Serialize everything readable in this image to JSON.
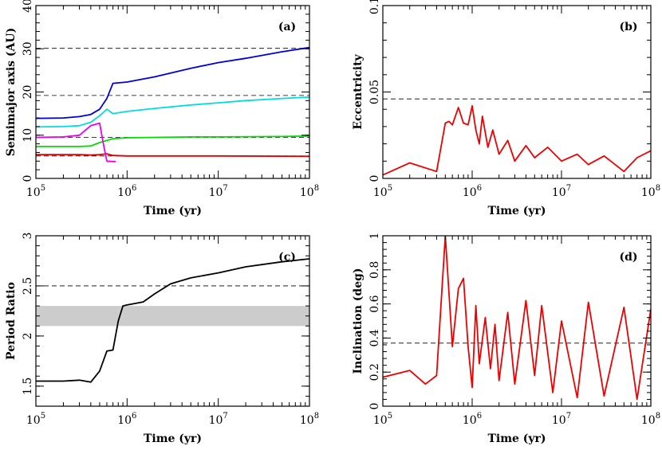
{
  "chart_data": [
    {
      "panel": "(a)",
      "type": "line",
      "xlabel": "Time (yr)",
      "ylabel": "Semimajor axis (AU)",
      "x_scale": "log",
      "xlim": [
        100000,
        100000000
      ],
      "ylim": [
        0,
        40
      ],
      "x_ticks": [
        100000,
        1000000,
        10000000,
        100000000
      ],
      "x_tick_labels": [
        [
          "10",
          "5"
        ],
        [
          "10",
          "6"
        ],
        [
          "10",
          "7"
        ],
        [
          "10",
          "8"
        ]
      ],
      "y_ticks": [
        0,
        10,
        20,
        30,
        40
      ],
      "y_tick_labels": [
        "0",
        "10",
        "20",
        "30",
        "40"
      ],
      "reference_lines_y": [
        30.1,
        19.2,
        9.5,
        5.2
      ],
      "series": [
        {
          "color": "#0000dd",
          "x": [
            100000,
            200000,
            300000,
            400000,
            500000,
            600000,
            700000,
            1000000,
            2000000,
            5000000,
            10000000,
            20000000,
            50000000,
            100000000
          ],
          "y": [
            13.9,
            14.0,
            14.3,
            14.8,
            16.0,
            18.5,
            22.0,
            22.3,
            23.5,
            25.5,
            26.8,
            27.8,
            29.3,
            30.3
          ]
        },
        {
          "color": "#00dddd",
          "x": [
            100000,
            200000,
            300000,
            400000,
            500000,
            600000,
            700000,
            1000000,
            2000000,
            5000000,
            10000000,
            20000000,
            50000000,
            100000000
          ],
          "y": [
            11.9,
            12.0,
            12.2,
            13.0,
            14.5,
            16.0,
            15.0,
            15.5,
            16.2,
            17.0,
            17.5,
            18.0,
            18.5,
            18.8
          ]
        },
        {
          "color": "#00dd00",
          "x": [
            100000,
            200000,
            300000,
            400000,
            500000,
            700000,
            1000000,
            2000000,
            5000000,
            10000000,
            50000000,
            100000000
          ],
          "y": [
            7.4,
            7.4,
            7.4,
            7.5,
            8.3,
            9.2,
            9.4,
            9.5,
            9.6,
            9.6,
            9.7,
            9.8
          ]
        },
        {
          "color": "#dd0000",
          "x": [
            100000,
            200000,
            300000,
            400000,
            500000,
            600000,
            700000,
            1000000,
            10000000,
            100000000
          ],
          "y": [
            5.5,
            5.5,
            5.5,
            5.4,
            5.5,
            5.7,
            5.3,
            5.2,
            5.2,
            5.1
          ]
        },
        {
          "color": "#ee00ee",
          "x": [
            100000,
            200000,
            300000,
            400000,
            500000,
            550000,
            600000,
            700000,
            750000
          ],
          "y": [
            9.5,
            9.6,
            10.0,
            12.2,
            12.8,
            8.0,
            4.0,
            3.9,
            3.9
          ]
        }
      ]
    },
    {
      "panel": "(b)",
      "type": "line",
      "xlabel": "Time (yr)",
      "ylabel": "Eccentricity",
      "x_scale": "log",
      "xlim": [
        100000,
        100000000
      ],
      "ylim": [
        0,
        0.1
      ],
      "x_ticks": [
        100000,
        1000000,
        10000000,
        100000000
      ],
      "x_tick_labels": [
        [
          "10",
          "5"
        ],
        [
          "10",
          "6"
        ],
        [
          "10",
          "7"
        ],
        [
          "10",
          "8"
        ]
      ],
      "y_ticks": [
        0,
        0.05,
        0.1
      ],
      "y_tick_labels": [
        "0",
        "0.05",
        "0.1"
      ],
      "reference_lines_y": [
        0.046
      ],
      "series": [
        {
          "color": "#ee0000",
          "x": [
            100000,
            200000,
            400000,
            500000,
            550000,
            600000,
            700000,
            800000,
            900000,
            1000000,
            1100000,
            1200000,
            1300000,
            1500000,
            1700000,
            2000000,
            2500000,
            3000000,
            4000000,
            5000000,
            7000000,
            10000000,
            15000000,
            20000000,
            30000000,
            50000000,
            70000000,
            100000000
          ],
          "y": [
            0.002,
            0.009,
            0.004,
            0.032,
            0.033,
            0.031,
            0.041,
            0.032,
            0.031,
            0.042,
            0.028,
            0.02,
            0.036,
            0.018,
            0.028,
            0.014,
            0.022,
            0.01,
            0.019,
            0.012,
            0.018,
            0.01,
            0.014,
            0.008,
            0.013,
            0.004,
            0.012,
            0.016
          ]
        }
      ]
    },
    {
      "panel": "(c)",
      "type": "line",
      "xlabel": "Time (yr)",
      "ylabel": "Period Ratio",
      "x_scale": "log",
      "xlim": [
        100000,
        100000000
      ],
      "ylim": [
        1.3,
        3
      ],
      "x_ticks": [
        100000,
        1000000,
        10000000,
        100000000
      ],
      "x_tick_labels": [
        [
          "10",
          "5"
        ],
        [
          "10",
          "6"
        ],
        [
          "10",
          "7"
        ],
        [
          "10",
          "8"
        ]
      ],
      "y_ticks": [
        1.5,
        2,
        2.5,
        3
      ],
      "y_tick_labels": [
        "1.5",
        "2",
        "2.5",
        "3"
      ],
      "reference_lines_y": [
        2.5
      ],
      "shaded_band_y": [
        2.1,
        2.3
      ],
      "series": [
        {
          "color": "#000000",
          "x": [
            100000,
            200000,
            300000,
            400000,
            500000,
            600000,
            700000,
            800000,
            900000,
            1000000,
            1500000,
            2000000,
            3000000,
            5000000,
            10000000,
            20000000,
            50000000,
            100000000
          ],
          "y": [
            1.55,
            1.55,
            1.56,
            1.54,
            1.65,
            1.85,
            1.86,
            2.15,
            2.3,
            2.31,
            2.34,
            2.42,
            2.52,
            2.58,
            2.63,
            2.69,
            2.74,
            2.77
          ]
        }
      ]
    },
    {
      "panel": "(d)",
      "type": "line",
      "xlabel": "Time (yr)",
      "ylabel": "Inclination (deg)",
      "x_scale": "log",
      "xlim": [
        100000,
        100000000
      ],
      "ylim": [
        0,
        1
      ],
      "x_ticks": [
        100000,
        1000000,
        10000000,
        100000000
      ],
      "x_tick_labels": [
        [
          "10",
          "5"
        ],
        [
          "10",
          "6"
        ],
        [
          "10",
          "7"
        ],
        [
          "10",
          "8"
        ]
      ],
      "y_ticks": [
        0,
        0.2,
        0.4,
        0.6,
        0.8,
        1
      ],
      "y_tick_labels": [
        "0",
        "0.2",
        "0.4",
        "0.6",
        "0.8",
        "1"
      ],
      "reference_lines_y": [
        0.37
      ],
      "series": [
        {
          "color": "#ee0000",
          "x": [
            100000,
            200000,
            300000,
            400000,
            500000,
            600000,
            700000,
            800000,
            900000,
            1000000,
            1100000,
            1200000,
            1400000,
            1600000,
            1800000,
            2000000,
            2500000,
            3000000,
            4000000,
            5000000,
            6000000,
            8000000,
            10000000,
            15000000,
            20000000,
            30000000,
            50000000,
            70000000,
            100000000
          ],
          "y": [
            0.17,
            0.21,
            0.13,
            0.18,
            1.0,
            0.35,
            0.69,
            0.75,
            0.35,
            0.11,
            0.59,
            0.25,
            0.52,
            0.22,
            0.48,
            0.15,
            0.55,
            0.13,
            0.62,
            0.18,
            0.59,
            0.08,
            0.5,
            0.05,
            0.61,
            0.06,
            0.58,
            0.04,
            0.57
          ]
        }
      ]
    }
  ]
}
